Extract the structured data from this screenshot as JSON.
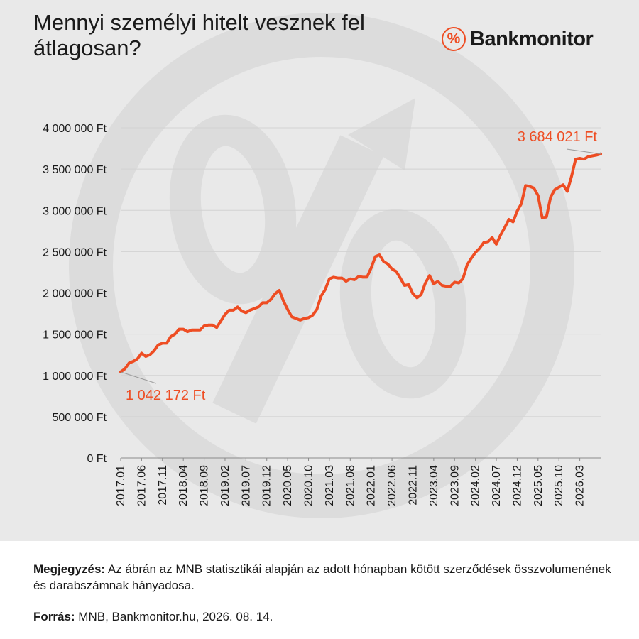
{
  "title": "Mennyi személyi hitelt vesznek fel átlagosan?",
  "brand": {
    "name": "Bankmonitor",
    "badge_symbol": "%",
    "color": "#ee4d23"
  },
  "note": {
    "label": "Megjegyzés:",
    "text": " Az ábrán az MNB statisztikái alapján az adott hónapban kötött szerződések összvolumenének és darabszámnak hányadosa."
  },
  "source": {
    "label": "Forrás:",
    "text": " MNB, Bankmonitor.hu, 2026. 08. 14."
  },
  "chart_data": {
    "type": "line",
    "x_start": "2017.01",
    "x_tick_labels": [
      "2017.01",
      "2017.06",
      "2017.11",
      "2018.04",
      "2018.09",
      "2019.02",
      "2019.07",
      "2019.12",
      "2020.05",
      "2020.10",
      "2021.03",
      "2021.08",
      "2022.01",
      "2022.06",
      "2022.11",
      "2023.04",
      "2023.09",
      "2024.02",
      "2024.07",
      "2024.12",
      "2025.05",
      "2025.10",
      "2026.03"
    ],
    "y_ticks": [
      0,
      500000,
      1000000,
      1500000,
      2000000,
      2500000,
      3000000,
      3500000,
      4000000
    ],
    "y_tick_labels": [
      "0 Ft",
      "500 000 Ft",
      "1 000 000 Ft",
      "1 500 000 Ft",
      "2 000 000 Ft",
      "2 500 000 Ft",
      "3 000 000 Ft",
      "3 500 000 Ft",
      "4 000 000 Ft"
    ],
    "ylim": [
      0,
      4000000
    ],
    "grid": true,
    "line_color": "#ee4d23",
    "annotations": [
      {
        "text": "1 042 172 Ft",
        "index": 0
      },
      {
        "text": "3 684 021 Ft",
        "index": 115
      }
    ],
    "series": [
      {
        "values": [
          1042172,
          1080000,
          1150000,
          1170000,
          1200000,
          1270000,
          1230000,
          1250000,
          1300000,
          1370000,
          1390000,
          1390000,
          1470000,
          1500000,
          1560000,
          1560000,
          1530000,
          1550000,
          1550000,
          1550000,
          1600000,
          1610000,
          1610000,
          1580000,
          1660000,
          1740000,
          1790000,
          1790000,
          1830000,
          1780000,
          1760000,
          1790000,
          1810000,
          1830000,
          1880000,
          1880000,
          1920000,
          1990000,
          2030000,
          1900000,
          1800000,
          1710000,
          1690000,
          1670000,
          1690000,
          1700000,
          1730000,
          1800000,
          1960000,
          2040000,
          2170000,
          2190000,
          2180000,
          2180000,
          2140000,
          2170000,
          2160000,
          2200000,
          2190000,
          2190000,
          2300000,
          2440000,
          2460000,
          2380000,
          2350000,
          2290000,
          2260000,
          2180000,
          2090000,
          2100000,
          1990000,
          1940000,
          1980000,
          2120000,
          2210000,
          2110000,
          2140000,
          2090000,
          2080000,
          2080000,
          2130000,
          2120000,
          2170000,
          2340000,
          2420000,
          2490000,
          2540000,
          2610000,
          2620000,
          2670000,
          2590000,
          2700000,
          2790000,
          2890000,
          2860000,
          2990000,
          3080000,
          3300000,
          3290000,
          3270000,
          3180000,
          2910000,
          2920000,
          3160000,
          3250000,
          3280000,
          3310000,
          3230000,
          3410000,
          3620000,
          3630000,
          3620000,
          3650000,
          3660000,
          3670000,
          3684021
        ]
      }
    ]
  }
}
